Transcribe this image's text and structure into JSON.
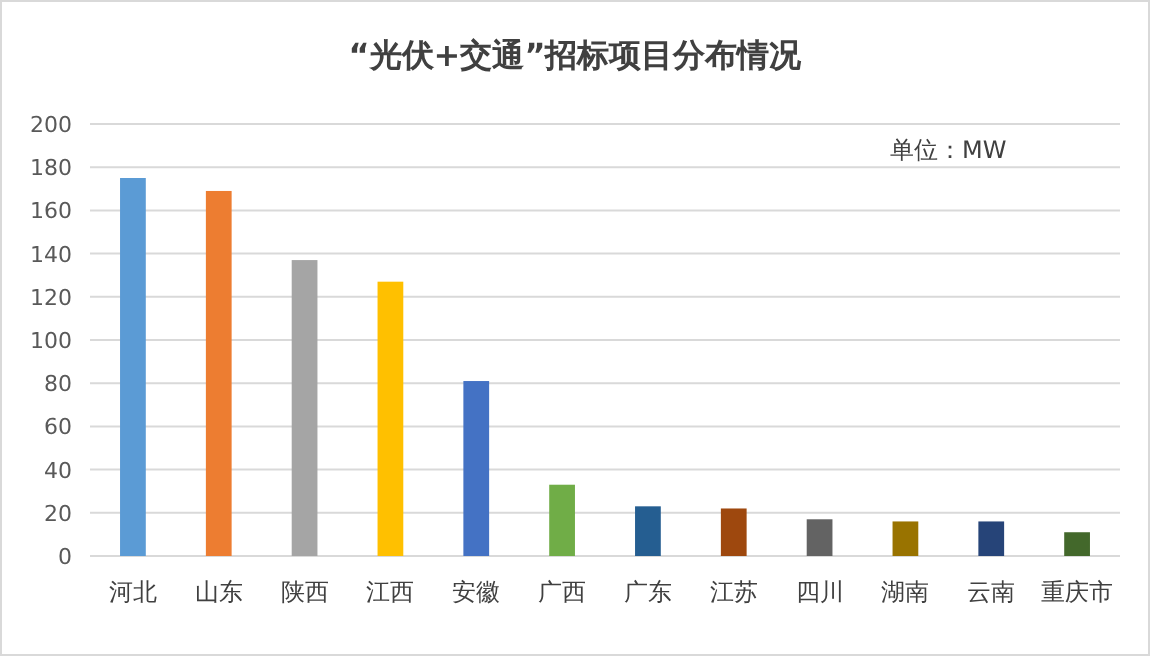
{
  "chart_data": {
    "type": "bar",
    "title": "“光伏+交通”招标项目分布情况",
    "categories": [
      "河北",
      "山东",
      "陕西",
      "江西",
      "安徽",
      "广西",
      "广东",
      "江苏",
      "四川",
      "湖南",
      "云南",
      "重庆市"
    ],
    "values": [
      175,
      169,
      137,
      127,
      81,
      33,
      23,
      22,
      17,
      16,
      16,
      11
    ],
    "colors": [
      "#5b9bd5",
      "#ed7d31",
      "#a5a5a5",
      "#ffc000",
      "#4472c4",
      "#70ad47",
      "#255e91",
      "#9e480e",
      "#636363",
      "#997300",
      "#264478",
      "#43682b"
    ],
    "ylim": [
      0,
      200
    ],
    "yticks": [
      0,
      20,
      40,
      60,
      80,
      100,
      120,
      140,
      160,
      180,
      200
    ],
    "grid": "y",
    "annotations": [
      "单位：MW"
    ]
  }
}
